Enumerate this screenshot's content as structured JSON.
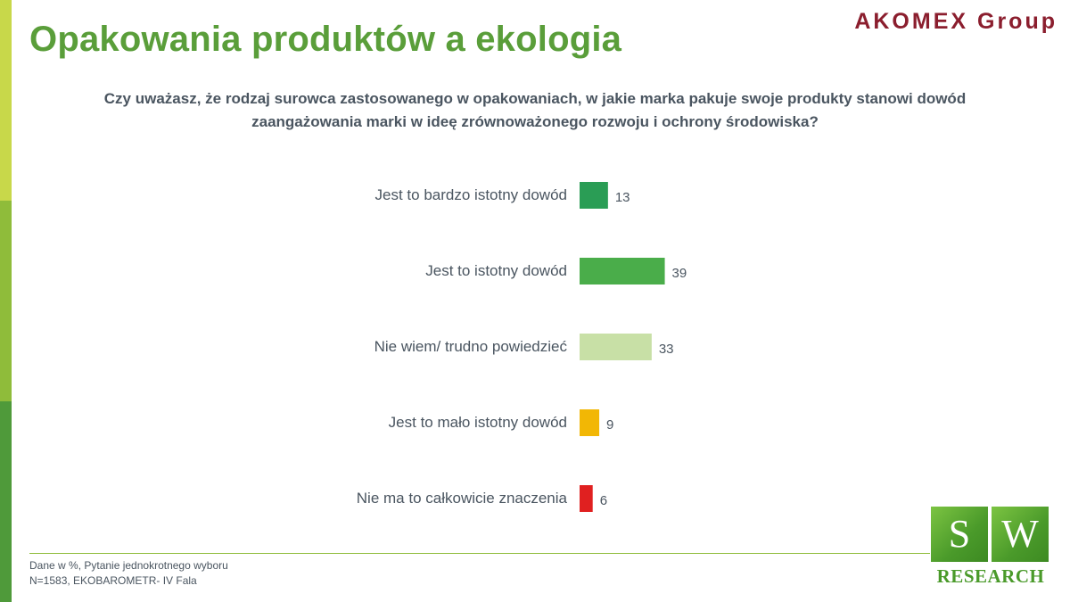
{
  "header": {
    "title": "Opakowania produktów a ekologia",
    "brand": "AKOMEX Group"
  },
  "question": {
    "line1": "Czy uważasz, że rodzaj surowca zastosowanego w opakowaniach, w jakie marka pakuje swoje produkty stanowi dowód",
    "line2": "zaangażowania marki w ideę zrównoważonego rozwoju i ochrony środowiska?"
  },
  "chart_data": {
    "type": "bar",
    "orientation": "horizontal",
    "categories": [
      "Jest to bardzo istotny dowód",
      "Jest to istotny dowód",
      "Nie wiem/ trudno powiedzieć",
      "Jest to mało istotny dowód",
      "Nie ma to całkowicie znaczenia"
    ],
    "values": [
      13,
      39,
      33,
      9,
      6
    ],
    "colors": [
      "#2a9d55",
      "#4aad4a",
      "#c8e0a6",
      "#f2b705",
      "#e02020"
    ],
    "unit": "%",
    "grid": false,
    "legend": "none"
  },
  "footer": {
    "note1": "Dane w %, Pytanie jednokrotnego wyboru",
    "note2": "N=1583, EKOBAROMETR- IV Fala"
  },
  "logo": {
    "s": "S",
    "w": "W",
    "text": "RESEARCH"
  }
}
